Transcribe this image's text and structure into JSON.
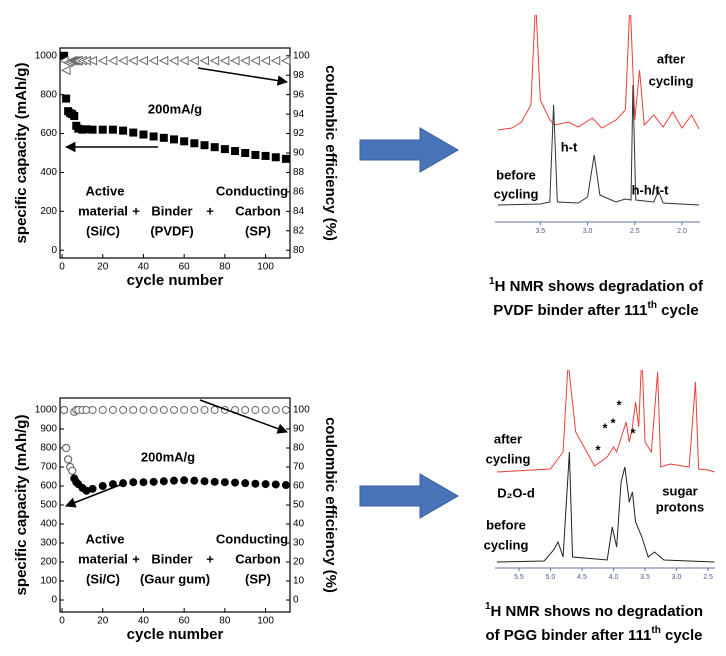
{
  "chart_data": [
    {
      "type": "scatter",
      "xlabel": "cycle number",
      "ylabel": "specific capacity (mAh/g)",
      "y2label": "coulombic efficiency (%)",
      "annotations": [
        "200mA/g",
        "Active",
        "material",
        "(Si/C)",
        "+",
        "Binder",
        "(PVDF)",
        "+",
        "Conducting",
        "Carbon",
        "(SP)"
      ],
      "x": [
        1,
        2,
        3,
        4,
        5,
        6,
        7,
        8,
        10,
        12,
        15,
        20,
        25,
        30,
        35,
        40,
        45,
        50,
        55,
        60,
        65,
        70,
        75,
        80,
        85,
        90,
        95,
        100,
        105,
        110
      ],
      "series": [
        {
          "color": "#000000",
          "marker": "square",
          "filled": true,
          "values": [
            1000,
            780,
            715,
            705,
            700,
            690,
            640,
            625,
            620,
            622,
            620,
            620,
            620,
            615,
            605,
            595,
            585,
            578,
            570,
            560,
            550,
            540,
            530,
            520,
            510,
            500,
            490,
            485,
            478,
            470
          ]
        },
        {
          "color": "#666666",
          "marker": "triangle",
          "filled": false,
          "axis": "y2",
          "values": [
            99.5,
            98.5,
            99.3,
            99.4,
            99.5,
            99.5,
            99.5,
            99.5,
            99.5,
            99.5,
            99.5,
            99.5,
            99.5,
            99.5,
            99.5,
            99.5,
            99.5,
            99.5,
            99.5,
            99.5,
            99.5,
            99.5,
            99.5,
            99.5,
            99.5,
            99.5,
            99.5,
            99.5,
            99.5,
            99.5
          ]
        }
      ],
      "xlim": [
        -1,
        112
      ],
      "xticks": [
        0,
        20,
        40,
        60,
        80,
        100
      ],
      "ylim": [
        -40,
        1040
      ],
      "yticks": [
        0,
        200,
        400,
        600,
        800,
        1000
      ],
      "y2lim": [
        79.2,
        100.8
      ],
      "y2ticks": [
        80,
        82,
        84,
        86,
        88,
        90,
        92,
        94,
        96,
        98,
        100
      ]
    },
    {
      "type": "scatter",
      "xlabel": "cycle number",
      "ylabel": "specific capacity (mAh/g)",
      "y2label": "coulombic efficiency (%)",
      "annotations": [
        "200mA/g",
        "Active",
        "material",
        "(Si/C)",
        "+",
        "Binder",
        "(Gaur gum)",
        "+",
        "Conducting",
        "Carbon",
        "(SP)"
      ],
      "x": [
        1,
        2,
        3,
        4,
        5,
        6,
        7,
        8,
        10,
        12,
        15,
        20,
        25,
        30,
        35,
        40,
        45,
        50,
        55,
        60,
        65,
        70,
        75,
        80,
        85,
        90,
        95,
        100,
        105,
        110
      ],
      "series": [
        {
          "color": "#000000",
          "marker": "circle",
          "filled": true,
          "values": [
            1000,
            800,
            740,
            700,
            680,
            640,
            620,
            610,
            590,
            575,
            585,
            600,
            610,
            615,
            620,
            620,
            622,
            625,
            628,
            630,
            628,
            625,
            622,
            620,
            618,
            615,
            612,
            610,
            608,
            605
          ]
        },
        {
          "color": "#666666",
          "marker": "circle",
          "filled": false,
          "axis": "y2",
          "values": [
            100,
            80,
            74,
            70,
            68,
            99,
            100,
            100,
            100,
            100,
            100,
            100,
            100,
            100,
            100,
            100,
            100,
            100,
            100,
            100,
            100,
            100,
            100,
            100,
            100,
            100,
            100,
            100,
            100,
            100
          ]
        }
      ],
      "xlim": [
        -1,
        112
      ],
      "xticks": [
        0,
        20,
        40,
        60,
        80,
        100
      ],
      "ylim": [
        -63,
        1063
      ],
      "yticks": [
        0,
        100,
        200,
        300,
        400,
        500,
        600,
        700,
        800,
        900,
        1000
      ],
      "y2lim": [
        -6.3,
        106.3
      ],
      "y2ticks": [
        0,
        10,
        20,
        30,
        40,
        50,
        60,
        70,
        80,
        90,
        100
      ]
    },
    {
      "type": "line",
      "xlim": [
        3.98,
        1.81
      ],
      "xticks": [
        3.5,
        {
          "value": 3,
          "label": "3.0"
        },
        2.5,
        {
          "value": 2,
          "label": "2.0"
        }
      ],
      "annotations": [
        "after",
        "cycling",
        "h-t",
        "before",
        "cycling",
        "h-h/t-t"
      ],
      "caption": [
        "1",
        "H NMR shows degradation of",
        "PVDF binder after 111",
        "th",
        " cycle"
      ],
      "series": [
        {
          "color": "#e8403a",
          "x": [
            3.95,
            3.8,
            3.7,
            3.6,
            3.55,
            3.5,
            3.4,
            3.35,
            3.2,
            3.1,
            2.95,
            2.85,
            2.7,
            2.6,
            2.55,
            2.5,
            2.45,
            2.4,
            2.3,
            2.2,
            2.1,
            2.0,
            1.9,
            1.82
          ],
          "values": [
            0,
            2,
            8,
            25,
            130,
            30,
            10,
            5,
            8,
            3,
            12,
            2,
            10,
            20,
            130,
            10,
            60,
            5,
            15,
            3,
            18,
            2,
            15,
            1
          ]
        },
        {
          "color": "#333333",
          "x": [
            3.95,
            3.5,
            3.4,
            3.36,
            3.32,
            3.1,
            3.0,
            2.93,
            2.87,
            2.7,
            2.6,
            2.54,
            2.52,
            2.49,
            2.3,
            2.25,
            2.2,
            1.82
          ],
          "values": [
            0,
            1,
            3,
            100,
            3,
            2,
            8,
            50,
            10,
            3,
            6,
            5,
            120,
            5,
            3,
            14,
            2,
            0
          ]
        }
      ]
    },
    {
      "type": "line",
      "xlim": [
        5.88,
        2.39
      ],
      "xticks": [
        5.5,
        {
          "value": 5,
          "label": "5.0"
        },
        4.5,
        {
          "value": 4,
          "label": "4.0"
        },
        3.5,
        {
          "value": 3,
          "label": "3.0"
        },
        2.5
      ],
      "annotations": [
        "after",
        "cycling",
        "D₂O-d",
        "sugar",
        "protons",
        "before",
        "cycling",
        "*",
        "*",
        "*",
        "*",
        "*"
      ],
      "caption": [
        "1",
        "H NMR shows no degradation",
        "of PGG binder after 111",
        "th",
        " cycle"
      ],
      "series": [
        {
          "color": "#e8403a",
          "x": [
            5.85,
            5.0,
            4.8,
            4.72,
            4.6,
            4.3,
            4.1,
            4.0,
            3.95,
            3.85,
            3.8,
            3.75,
            3.7,
            3.65,
            3.6,
            3.55,
            3.5,
            3.4,
            3.3,
            3.25,
            3.1,
            2.8,
            2.7,
            2.65,
            2.5,
            2.4
          ],
          "values": [
            0,
            3,
            20,
            110,
            40,
            6,
            15,
            25,
            20,
            40,
            50,
            30,
            45,
            70,
            45,
            120,
            30,
            20,
            100,
            5,
            8,
            5,
            90,
            3,
            2,
            0
          ]
        },
        {
          "color": "#222222",
          "x": [
            5.85,
            5.1,
            4.95,
            4.88,
            4.8,
            4.7,
            4.65,
            4.1,
            4.02,
            3.95,
            3.88,
            3.82,
            3.75,
            3.7,
            3.65,
            3.55,
            3.45,
            3.35,
            3.2,
            2.4
          ],
          "values": [
            0,
            1,
            12,
            20,
            5,
            110,
            5,
            2,
            35,
            15,
            80,
            95,
            60,
            70,
            40,
            25,
            5,
            10,
            2,
            0
          ]
        }
      ]
    }
  ]
}
